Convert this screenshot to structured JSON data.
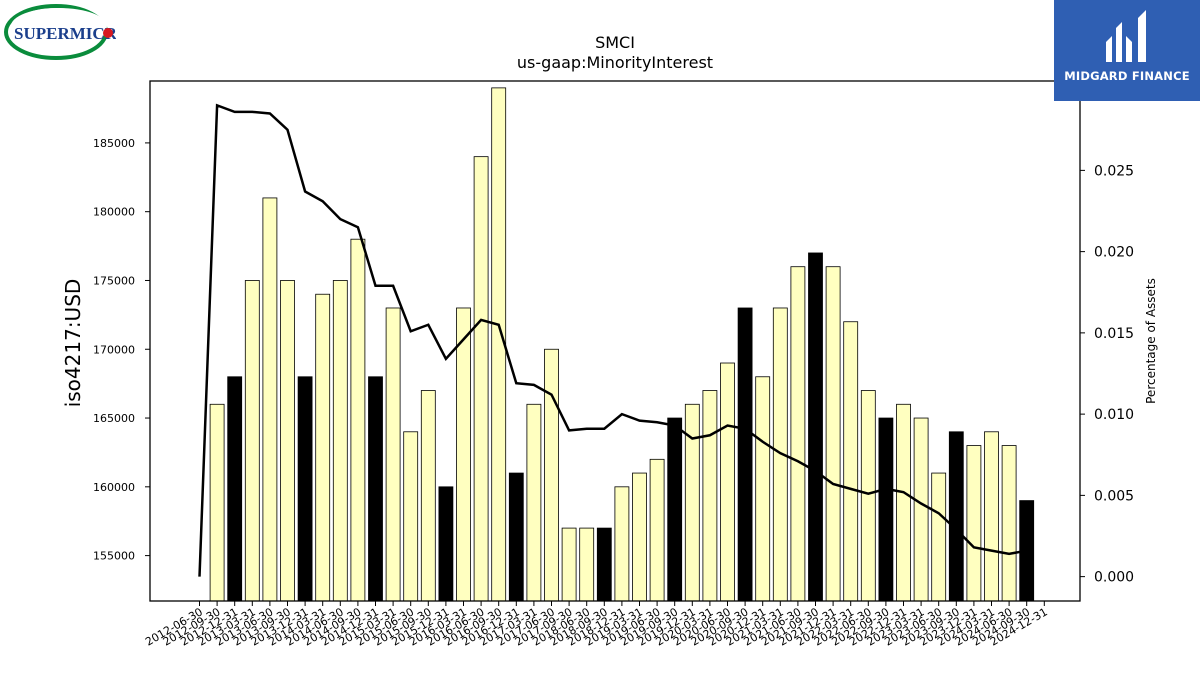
{
  "logos": {
    "left": "SUPERMICRO",
    "right": "MIDGARD FINANCE"
  },
  "chart_data": {
    "type": "bar",
    "title": "SMCI",
    "subtitle": "us-gaap:MinorityInterest",
    "ylabel": "iso4217:USD",
    "y2label": "Percentage of Assets",
    "ylim": [
      151700,
      189500
    ],
    "y2lim": [
      -0.0015,
      0.0305
    ],
    "yticks": [
      155000,
      160000,
      165000,
      170000,
      175000,
      180000,
      185000
    ],
    "y2ticks": [
      "0.000",
      "0.005",
      "0.010",
      "0.015",
      "0.020",
      "0.025"
    ],
    "categories": [
      "2012-06-30",
      "2012-09-30",
      "2012-12-31",
      "2013-03-31",
      "2013-06-30",
      "2013-09-30",
      "2013-12-31",
      "2014-03-31",
      "2014-06-30",
      "2014-09-30",
      "2014-12-31",
      "2015-03-31",
      "2015-06-30",
      "2015-09-30",
      "2015-12-31",
      "2016-03-31",
      "2016-06-30",
      "2016-09-30",
      "2016-12-31",
      "2017-03-31",
      "2017-06-30",
      "2017-09-30",
      "2018-06-30",
      "2018-09-30",
      "2018-12-31",
      "2019-03-31",
      "2019-06-30",
      "2019-09-30",
      "2019-12-31",
      "2020-03-31",
      "2020-06-30",
      "2020-09-30",
      "2020-12-31",
      "2021-03-31",
      "2021-06-30",
      "2021-09-30",
      "2021-12-31",
      "2022-03-31",
      "2022-06-30",
      "2022-09-30",
      "2022-12-31",
      "2023-03-31",
      "2023-06-30",
      "2023-09-30",
      "2023-12-31",
      "2024-03-31",
      "2024-06-30",
      "2024-09-30",
      "2024-12-31"
    ],
    "values": [
      null,
      166000,
      168000,
      175000,
      181000,
      175000,
      168000,
      174000,
      175000,
      178000,
      168000,
      173000,
      164000,
      167000,
      160000,
      173000,
      184000,
      189000,
      161000,
      166000,
      170000,
      157000,
      157000,
      157000,
      160000,
      161000,
      162000,
      165000,
      166000,
      167000,
      169000,
      173000,
      168000,
      173000,
      176000,
      177000,
      176000,
      172000,
      167000,
      165000,
      166000,
      165000,
      161000,
      164000,
      163000,
      164000,
      163000,
      159000,
      null
    ],
    "highlight": [
      false,
      false,
      true,
      false,
      false,
      false,
      true,
      false,
      false,
      false,
      true,
      false,
      false,
      false,
      true,
      false,
      false,
      false,
      true,
      false,
      false,
      false,
      false,
      true,
      false,
      false,
      false,
      true,
      false,
      false,
      false,
      true,
      false,
      false,
      false,
      true,
      false,
      false,
      false,
      true,
      false,
      false,
      false,
      true,
      false,
      false,
      false,
      true,
      false
    ],
    "series": [
      {
        "name": "Percentage of Assets",
        "values": [
          0.0,
          0.029,
          0.0286,
          0.0286,
          0.0285,
          0.0275,
          0.0237,
          0.0231,
          0.022,
          0.0215,
          0.0179,
          0.0179,
          0.0151,
          0.0155,
          0.0134,
          0.0146,
          0.0158,
          0.0155,
          0.0119,
          0.0118,
          0.0112,
          0.009,
          0.0091,
          0.0091,
          0.01,
          0.0096,
          0.0095,
          0.0093,
          0.0085,
          0.0087,
          0.0093,
          0.0091,
          0.0083,
          0.0076,
          0.0071,
          0.0065,
          0.0057,
          0.0054,
          0.0051,
          0.0054,
          0.0052,
          0.0045,
          0.0039,
          0.0029,
          0.0018,
          0.0016,
          0.0014,
          0.0016,
          null
        ]
      }
    ],
    "colors": {
      "bar": "#ffffc0",
      "highlight": "#000000",
      "line": "#000000"
    }
  }
}
